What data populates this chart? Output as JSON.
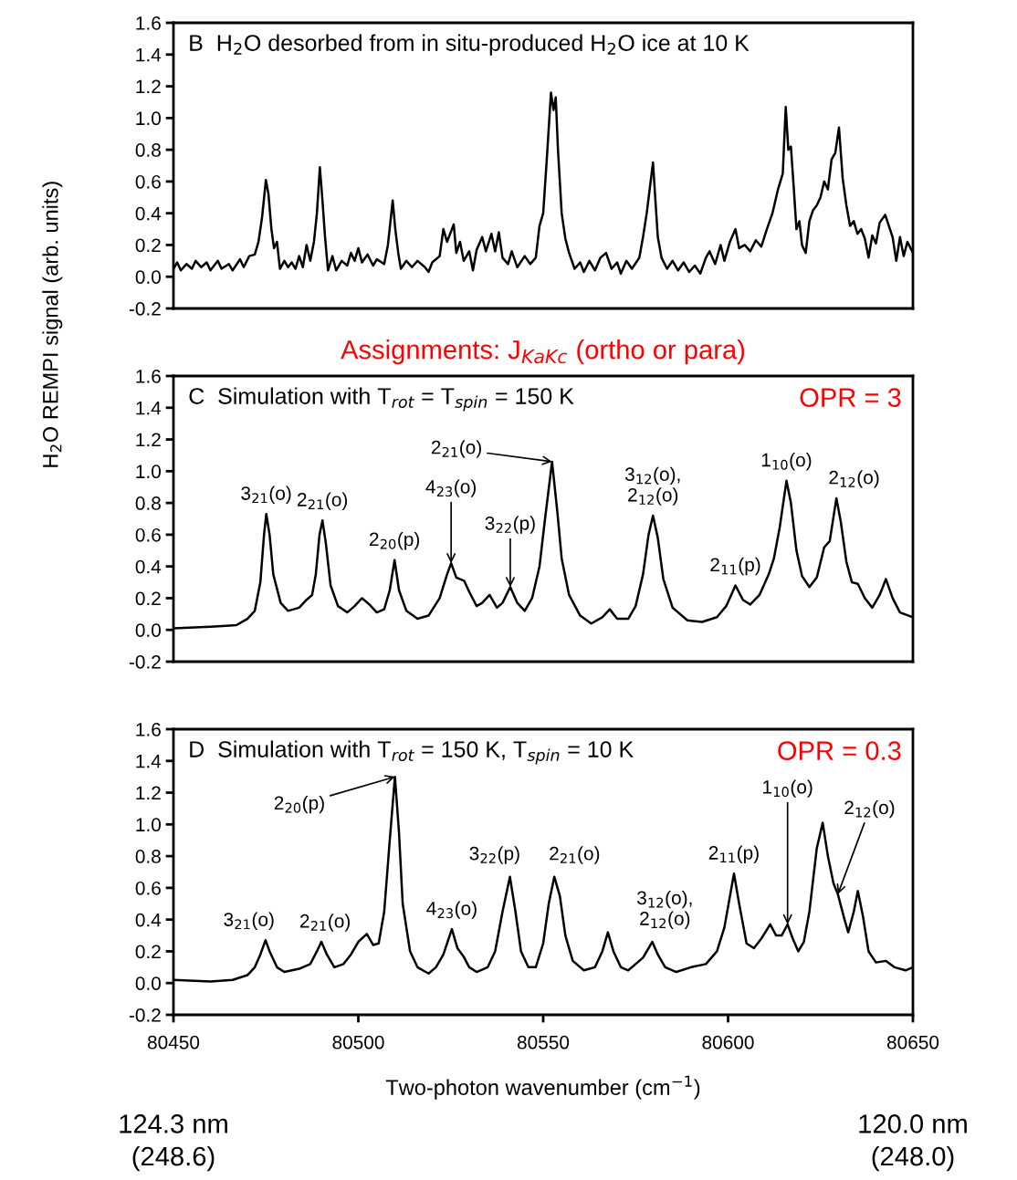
{
  "chart_data": [
    {
      "type": "line",
      "title": "B  H$_{2}$O desorbed from in situ-produced H$_{2}$O ice at 10 K",
      "tick_labels": "y",
      "grid": false,
      "legend": false,
      "xlim": [
        80450,
        80650
      ],
      "xticks": [
        80450,
        80500,
        80550,
        80600,
        80650
      ],
      "ylim": [
        -0.2,
        1.6
      ],
      "yticks": [
        {
          "value": -0.2,
          "label": "-0.2"
        },
        {
          "value": 0,
          "label": "0.0"
        },
        {
          "value": 0.2,
          "label": "0.2"
        },
        {
          "value": 0.4,
          "label": "0.4"
        },
        {
          "value": 0.6,
          "label": "0.6"
        },
        {
          "value": 0.8,
          "label": "0.8"
        },
        {
          "value": 1.0,
          "label": "1.0"
        },
        {
          "value": 1.2,
          "label": "1.2"
        },
        {
          "value": 1.4,
          "label": "1.4"
        },
        {
          "value": 1.6,
          "label": "1.6"
        }
      ],
      "series": [
        {
          "color": "#000000",
          "x": [
            80450,
            80451,
            80452,
            80453.5,
            80455,
            80456,
            80457.5,
            80459,
            80460,
            80462,
            80463,
            80465,
            80466,
            80468,
            80469,
            80470.5,
            80472,
            80473,
            80474,
            80475,
            80475.7,
            80476.5,
            80477.2,
            80478,
            80478.8,
            80480,
            80481,
            80482,
            80483,
            80484,
            80485,
            80486,
            80487,
            80488,
            80488.8,
            80489.6,
            80490.3,
            80491,
            80491.8,
            80493,
            80494,
            80495.5,
            80497,
            80498,
            80499,
            80500,
            80501,
            80502.5,
            80504,
            80505,
            80507,
            80508,
            80509.3,
            80510,
            80510.8,
            80511.5,
            80513,
            80514.5,
            80516,
            80518,
            80519,
            80520,
            80522,
            80523,
            80524,
            80525.8,
            80526.5,
            80527.5,
            80528.5,
            80530,
            80531,
            80532,
            80533.5,
            80534.5,
            80536,
            80537,
            80538,
            80539,
            80540.5,
            80541.5,
            80543,
            80545,
            80546.5,
            80548,
            80549,
            80550,
            80551,
            80552.1,
            80552.8,
            80553.4,
            80554,
            80555,
            80556,
            80557,
            80558.5,
            80560,
            80561,
            80562.5,
            80564,
            80565.5,
            80567,
            80568.5,
            80570,
            80571,
            80572.5,
            80574,
            80576,
            80577,
            80578,
            80579.7,
            80580.3,
            80581,
            80582,
            80583.5,
            80585,
            80586.5,
            80588,
            80589.5,
            80591,
            80592.5,
            80594,
            80595,
            80596.5,
            80598,
            80599,
            80600.5,
            80602,
            80603,
            80604.5,
            80606,
            80607.5,
            80609,
            80610.5,
            80612,
            80613.5,
            80614.8,
            80615.6,
            80616.3,
            80617,
            80617.8,
            80618.5,
            80619.3,
            80620,
            80621,
            80622,
            80623,
            80624,
            80625,
            80626,
            80627,
            80628,
            80629,
            80630,
            80631,
            80632,
            80633,
            80634,
            80635,
            80636,
            80637,
            80638,
            80639,
            80640,
            80641,
            80642.5,
            80643.5,
            80644.5,
            80645.5,
            80646.5,
            80647.5,
            80648.5,
            80650
          ],
          "values": [
            0.05,
            0.09,
            0.04,
            0.08,
            0.05,
            0.1,
            0.06,
            0.09,
            0.04,
            0.1,
            0.05,
            0.08,
            0.04,
            0.11,
            0.06,
            0.13,
            0.14,
            0.22,
            0.38,
            0.61,
            0.52,
            0.3,
            0.18,
            0.22,
            0.05,
            0.1,
            0.06,
            0.09,
            0.05,
            0.13,
            0.06,
            0.2,
            0.1,
            0.22,
            0.4,
            0.69,
            0.48,
            0.25,
            0.04,
            0.13,
            0.04,
            0.1,
            0.07,
            0.15,
            0.1,
            0.18,
            0.09,
            0.14,
            0.07,
            0.11,
            0.08,
            0.2,
            0.48,
            0.3,
            0.15,
            0.05,
            0.1,
            0.06,
            0.1,
            0.06,
            0.03,
            0.09,
            0.13,
            0.3,
            0.22,
            0.33,
            0.15,
            0.22,
            0.1,
            0.16,
            0.04,
            0.17,
            0.25,
            0.16,
            0.27,
            0.16,
            0.28,
            0.12,
            0.08,
            0.16,
            0.06,
            0.13,
            0.08,
            0.12,
            0.32,
            0.4,
            0.75,
            1.16,
            1.05,
            1.13,
            0.8,
            0.4,
            0.24,
            0.15,
            0.05,
            0.09,
            0.03,
            0.1,
            0.04,
            0.12,
            0.15,
            0.05,
            0.09,
            0.02,
            0.1,
            0.05,
            0.12,
            0.25,
            0.4,
            0.72,
            0.5,
            0.25,
            0.12,
            0.05,
            0.1,
            0.04,
            0.09,
            0.03,
            0.07,
            0.02,
            0.12,
            0.16,
            0.08,
            0.2,
            0.1,
            0.22,
            0.3,
            0.18,
            0.2,
            0.16,
            0.23,
            0.19,
            0.3,
            0.4,
            0.55,
            0.65,
            1.07,
            0.8,
            0.82,
            0.55,
            0.3,
            0.35,
            0.2,
            0.15,
            0.35,
            0.42,
            0.45,
            0.5,
            0.6,
            0.55,
            0.74,
            0.78,
            0.94,
            0.62,
            0.45,
            0.32,
            0.35,
            0.27,
            0.3,
            0.24,
            0.12,
            0.26,
            0.21,
            0.34,
            0.39,
            0.32,
            0.25,
            0.1,
            0.25,
            0.13,
            0.22,
            0.15
          ]
        }
      ]
    },
    {
      "type": "line",
      "title": "C  Simulation with T$_{rot}$ = T$_{spin}$ = 150 K",
      "subtitle": "Assignments: J$_{KaKc}$ (ortho or para)",
      "ylabel": "H$_{2}$O REMPI signal (arb. units)",
      "tick_labels": "y",
      "grid": false,
      "legend": false,
      "xlim": [
        80450,
        80650
      ],
      "xticks": [
        80450,
        80500,
        80550,
        80600,
        80650
      ],
      "ylim": [
        -0.2,
        1.6
      ],
      "yticks": [
        {
          "value": -0.2,
          "label": "-0.2"
        },
        {
          "value": 0,
          "label": "0.0"
        },
        {
          "value": 0.2,
          "label": "0.2"
        },
        {
          "value": 0.4,
          "label": "0.4"
        },
        {
          "value": 0.6,
          "label": "0.6"
        },
        {
          "value": 0.8,
          "label": "0.8"
        },
        {
          "value": 1.0,
          "label": "1.0"
        },
        {
          "value": 1.2,
          "label": "1.2"
        },
        {
          "value": 1.4,
          "label": "1.4"
        },
        {
          "value": 1.6,
          "label": "1.6"
        }
      ],
      "annotations": [
        "OPR = 3",
        {
          "text": "3$_{21}$(o)",
          "x": 80475.1,
          "y": 0.73
        },
        {
          "text": "2$_{21}$(o)",
          "x": 80490.3,
          "y": 0.69
        },
        {
          "text": "2$_{20}$(p)",
          "x": 80509.8,
          "y": 0.44
        },
        {
          "text": "4$_{23}$(o)",
          "x": 80525.1,
          "y": 0.42
        },
        {
          "text": "3$_{22}$(p)",
          "x": 80541.1,
          "y": 0.27
        },
        {
          "text": "2$_{21}$(o)",
          "x": 80552.4,
          "y": 1.06
        },
        {
          "text": "3$_{12}$(o),\n2$_{12}$(o)",
          "x": 80579.7,
          "y": 0.72
        },
        {
          "text": "2$_{11}$(p)",
          "x": 80602,
          "y": 0.28
        },
        {
          "text": "1$_{10}$(o)",
          "x": 80615.8,
          "y": 0.94
        },
        {
          "text": "2$_{12}$(o)",
          "x": 80629.3,
          "y": 0.83
        }
      ],
      "series": [
        {
          "color": "#000000",
          "x": [
            80450,
            80460,
            80467,
            80470,
            80472,
            80473.5,
            80474.5,
            80475.1,
            80476,
            80477,
            80479,
            80481,
            80484,
            80486,
            80487.5,
            80488.5,
            80489.5,
            80490.3,
            80491.2,
            80492.5,
            80494.5,
            80497,
            80499,
            80501,
            80503,
            80505,
            80507,
            80508.5,
            80509.8,
            80511,
            80513,
            80516,
            80519,
            80522,
            80524,
            80525.1,
            80526.5,
            80528.6,
            80530,
            80532,
            80533.5,
            80535.5,
            80537.5,
            80539,
            80541.1,
            80543,
            80545,
            80547,
            80549,
            80550.5,
            80552.4,
            80553.8,
            80555,
            80557,
            80560,
            80563,
            80566,
            80568,
            80570,
            80573,
            80575,
            80577,
            80578.5,
            80579.7,
            80581,
            80582.5,
            80585,
            80589,
            80593,
            80597,
            80599.5,
            80602,
            80604,
            80606,
            80608.5,
            80611,
            80612.4,
            80614,
            80615.8,
            80617,
            80618.5,
            80620,
            80622,
            80624,
            80626,
            80627.5,
            80629.3,
            80630.5,
            80632,
            80633.5,
            80635.1,
            80637,
            80639,
            80641,
            80642.7,
            80644.5,
            80646.5,
            80650
          ],
          "values": [
            0.01,
            0.02,
            0.03,
            0.07,
            0.12,
            0.3,
            0.6,
            0.73,
            0.6,
            0.35,
            0.17,
            0.12,
            0.14,
            0.19,
            0.22,
            0.35,
            0.6,
            0.69,
            0.55,
            0.28,
            0.15,
            0.11,
            0.15,
            0.2,
            0.16,
            0.11,
            0.13,
            0.25,
            0.44,
            0.25,
            0.12,
            0.07,
            0.09,
            0.2,
            0.35,
            0.42,
            0.33,
            0.31,
            0.24,
            0.15,
            0.17,
            0.22,
            0.14,
            0.17,
            0.27,
            0.17,
            0.12,
            0.2,
            0.4,
            0.7,
            1.06,
            0.75,
            0.45,
            0.22,
            0.09,
            0.04,
            0.08,
            0.13,
            0.07,
            0.07,
            0.15,
            0.35,
            0.6,
            0.72,
            0.58,
            0.32,
            0.14,
            0.06,
            0.05,
            0.08,
            0.15,
            0.28,
            0.19,
            0.16,
            0.22,
            0.35,
            0.45,
            0.65,
            0.94,
            0.8,
            0.5,
            0.34,
            0.27,
            0.33,
            0.52,
            0.56,
            0.83,
            0.68,
            0.43,
            0.3,
            0.29,
            0.2,
            0.14,
            0.22,
            0.32,
            0.2,
            0.11,
            0.08
          ]
        }
      ]
    },
    {
      "type": "line",
      "title": "D  Simulation with T$_{rot}$ = 150 K, T$_{spin}$ = 10 K",
      "xlabel": "Two-photon wavenumber (cm$^{−1}$)",
      "grid": false,
      "legend": false,
      "xlim": [
        80450,
        80650
      ],
      "xticks": [
        80450,
        80500,
        80550,
        80600,
        80650
      ],
      "ylim": [
        -0.2,
        1.6
      ],
      "yticks": [
        {
          "value": -0.2,
          "label": "-0.2"
        },
        {
          "value": 0,
          "label": "0.0"
        },
        {
          "value": 0.2,
          "label": "0.2"
        },
        {
          "value": 0.4,
          "label": "0.4"
        },
        {
          "value": 0.6,
          "label": "0.6"
        },
        {
          "value": 0.8,
          "label": "0.8"
        },
        {
          "value": 1.0,
          "label": "1.0"
        },
        {
          "value": 1.2,
          "label": "1.2"
        },
        {
          "value": 1.4,
          "label": "1.4"
        },
        {
          "value": 1.6,
          "label": "1.6"
        }
      ],
      "annotations": [
        "OPR = 0.3",
        {
          "text": "3$_{21}$(o)",
          "x": 80474.9,
          "y": 0.27
        },
        {
          "text": "2$_{21}$(o)",
          "x": 80490,
          "y": 0.26
        },
        {
          "text": "2$_{20}$(p)",
          "x": 80509.9,
          "y": 1.3
        },
        {
          "text": "4$_{23}$(o)",
          "x": 80525.3,
          "y": 0.34
        },
        {
          "text": "3$_{22}$(p)",
          "x": 80541,
          "y": 0.67
        },
        {
          "text": "2$_{21}$(o)",
          "x": 80553,
          "y": 0.67
        },
        {
          "text": "3$_{12}$(o),\n2$_{12}$(o)",
          "x": 80579.5,
          "y": 0.26
        },
        {
          "text": "2$_{11}$(p)",
          "x": 80601.6,
          "y": 0.69
        },
        {
          "text": "1$_{10}$(o)",
          "x": 80616.1,
          "y": 0.37
        },
        {
          "text": "2$_{12}$(o)",
          "x": 80629.7,
          "y": 0.56
        },
        "124.3 nm\n(248.6)",
        "120.0 nm\n(248.0)"
      ],
      "series": [
        {
          "color": "#000000",
          "x": [
            80450,
            80460,
            80466,
            80470,
            80472,
            80473.5,
            80474.9,
            80476,
            80478,
            80480,
            80484,
            80487,
            80488.8,
            80490,
            80491.5,
            80493.5,
            80496,
            80498,
            80500,
            80502.3,
            80504,
            80505.5,
            80507,
            80508.5,
            80509.9,
            80511,
            80512,
            80514,
            80516,
            80519,
            80521,
            80523,
            80525.3,
            80526.8,
            80528.4,
            80530,
            80532,
            80535,
            80537,
            80539,
            80541,
            80542.5,
            80544,
            80546,
            80548,
            80550,
            80551.5,
            80553,
            80554.5,
            80556,
            80558,
            80561,
            80564,
            80566,
            80567.5,
            80569,
            80571,
            80573,
            80575,
            80577,
            80579.5,
            80581,
            80583,
            80586,
            80590,
            80594,
            80597,
            80599,
            80601.6,
            80603,
            80605,
            80607,
            80609,
            80611.4,
            80613,
            80614.5,
            80616.1,
            80617.5,
            80619,
            80620.5,
            80622,
            80624,
            80625.6,
            80627,
            80628.5,
            80629.7,
            80631.5,
            80632.5,
            80634,
            80635.1,
            80636.5,
            80638,
            80640,
            80642.7,
            80645,
            80648,
            80650
          ],
          "values": [
            0.02,
            0.01,
            0.02,
            0.05,
            0.1,
            0.18,
            0.27,
            0.2,
            0.1,
            0.07,
            0.09,
            0.12,
            0.2,
            0.26,
            0.18,
            0.1,
            0.12,
            0.18,
            0.26,
            0.31,
            0.24,
            0.25,
            0.45,
            0.9,
            1.3,
            0.95,
            0.5,
            0.2,
            0.1,
            0.06,
            0.1,
            0.18,
            0.34,
            0.22,
            0.17,
            0.1,
            0.07,
            0.1,
            0.2,
            0.45,
            0.67,
            0.45,
            0.2,
            0.1,
            0.1,
            0.25,
            0.5,
            0.67,
            0.55,
            0.3,
            0.14,
            0.08,
            0.1,
            0.2,
            0.32,
            0.2,
            0.1,
            0.08,
            0.12,
            0.16,
            0.26,
            0.18,
            0.1,
            0.07,
            0.1,
            0.12,
            0.2,
            0.35,
            0.69,
            0.5,
            0.25,
            0.22,
            0.28,
            0.37,
            0.3,
            0.3,
            0.37,
            0.28,
            0.2,
            0.26,
            0.45,
            0.85,
            1.01,
            0.8,
            0.63,
            0.56,
            0.4,
            0.32,
            0.45,
            0.58,
            0.42,
            0.2,
            0.13,
            0.14,
            0.1,
            0.08,
            0.1
          ]
        }
      ]
    }
  ]
}
